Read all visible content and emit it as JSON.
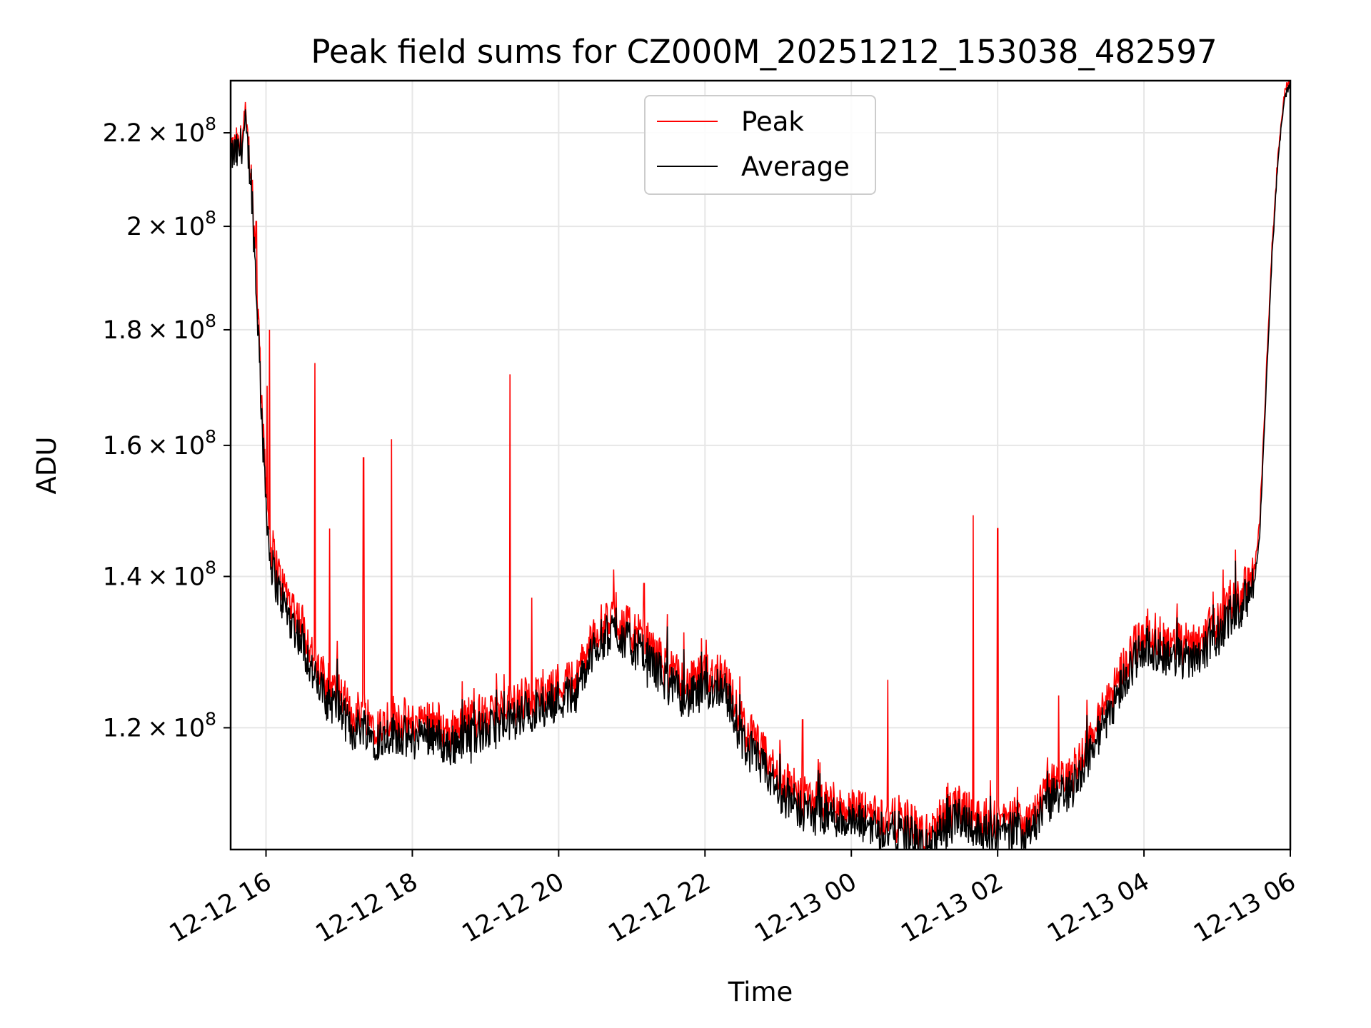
{
  "chart_data": {
    "type": "line",
    "title": "Peak field sums for CZ000M_20251212_153038_482597",
    "xlabel": "Time",
    "ylabel": "ADU",
    "y_scale": "log",
    "grid": true,
    "legend_position": "upper-center",
    "x_range": [
      "2025-12-12T15:31",
      "2025-12-13T06:00"
    ],
    "y_range": [
      106000000,
      232000000
    ],
    "x_ticks": [
      "12-12 16",
      "12-12 18",
      "12-12 20",
      "12-12 22",
      "12-13 00",
      "12-13 02",
      "12-13 04",
      "12-13 06"
    ],
    "y_ticks": [
      {
        "value": 120000000,
        "mant": "1.2",
        "exp": "8"
      },
      {
        "value": 140000000,
        "mant": "1.4",
        "exp": "8"
      },
      {
        "value": 160000000,
        "mant": "1.6",
        "exp": "8"
      },
      {
        "value": 180000000,
        "mant": "1.8",
        "exp": "8"
      },
      {
        "value": 200000000,
        "mant": "2",
        "exp": "8"
      },
      {
        "value": 220000000,
        "mant": "2.2",
        "exp": "8"
      }
    ],
    "series": [
      {
        "name": "Peak",
        "color": "#ff0000",
        "x": [
          "2025-12-12T15:30",
          "2025-12-12T15:38",
          "2025-12-12T15:43",
          "2025-12-12T15:48",
          "2025-12-12T15:53",
          "2025-12-12T15:58",
          "2025-12-12T16:03",
          "2025-12-12T16:10",
          "2025-12-12T16:20",
          "2025-12-12T16:30",
          "2025-12-12T16:40",
          "2025-12-12T16:50",
          "2025-12-12T17:00",
          "2025-12-12T17:10",
          "2025-12-12T17:20",
          "2025-12-12T17:30",
          "2025-12-12T17:45",
          "2025-12-12T18:00",
          "2025-12-12T18:15",
          "2025-12-12T18:30",
          "2025-12-12T18:45",
          "2025-12-12T19:00",
          "2025-12-12T19:15",
          "2025-12-12T19:30",
          "2025-12-12T19:45",
          "2025-12-12T20:00",
          "2025-12-12T20:15",
          "2025-12-12T20:30",
          "2025-12-12T20:45",
          "2025-12-12T21:00",
          "2025-12-12T21:15",
          "2025-12-12T21:30",
          "2025-12-12T21:45",
          "2025-12-12T22:00",
          "2025-12-12T22:15",
          "2025-12-12T22:30",
          "2025-12-12T22:45",
          "2025-12-12T23:00",
          "2025-12-12T23:15",
          "2025-12-12T23:30",
          "2025-12-12T23:45",
          "2025-12-13T00:00",
          "2025-12-13T00:15",
          "2025-12-13T00:30",
          "2025-12-13T00:45",
          "2025-12-13T01:00",
          "2025-12-13T01:15",
          "2025-12-13T01:30",
          "2025-12-13T01:45",
          "2025-12-13T02:00",
          "2025-12-13T02:15",
          "2025-12-13T02:30",
          "2025-12-13T02:45",
          "2025-12-13T03:00",
          "2025-12-13T03:15",
          "2025-12-13T03:30",
          "2025-12-13T03:45",
          "2025-12-13T04:00",
          "2025-12-13T04:15",
          "2025-12-13T04:30",
          "2025-12-13T04:45",
          "2025-12-13T05:00",
          "2025-12-13T05:10",
          "2025-12-13T05:20",
          "2025-12-13T05:30",
          "2025-12-13T05:35",
          "2025-12-13T05:40",
          "2025-12-13T05:45",
          "2025-12-13T05:50",
          "2025-12-13T05:55",
          "2025-12-13T06:00"
        ],
        "values": [
          215000000,
          216000000,
          222000000,
          210000000,
          185000000,
          160000000,
          145000000,
          140000000,
          136000000,
          133000000,
          128000000,
          125000000,
          124000000,
          121000000,
          122000000,
          120000000,
          121000000,
          120000000,
          121000000,
          119000000,
          121000000,
          121000000,
          122000000,
          123000000,
          124000000,
          125000000,
          126000000,
          132000000,
          134000000,
          132000000,
          130000000,
          127000000,
          125000000,
          126000000,
          127000000,
          120000000,
          117000000,
          114000000,
          112000000,
          111000000,
          111000000,
          110000000,
          110000000,
          109000000,
          109000000,
          107000000,
          109000000,
          111000000,
          109000000,
          109000000,
          109000000,
          110000000,
          113000000,
          114000000,
          118000000,
          123000000,
          128000000,
          132000000,
          131000000,
          130000000,
          131000000,
          133000000,
          136000000,
          137000000,
          140000000,
          148000000,
          170000000,
          195000000,
          215000000,
          228000000,
          232000000
        ]
      },
      {
        "name": "Average",
        "color": "#000000",
        "x": [
          "2025-12-12T15:30",
          "2025-12-12T15:38",
          "2025-12-12T15:43",
          "2025-12-12T15:48",
          "2025-12-12T15:53",
          "2025-12-12T15:58",
          "2025-12-12T16:03",
          "2025-12-12T16:10",
          "2025-12-12T16:20",
          "2025-12-12T16:30",
          "2025-12-12T16:40",
          "2025-12-12T16:50",
          "2025-12-12T17:00",
          "2025-12-12T17:10",
          "2025-12-12T17:20",
          "2025-12-12T17:30",
          "2025-12-12T17:45",
          "2025-12-12T18:00",
          "2025-12-12T18:15",
          "2025-12-12T18:30",
          "2025-12-12T18:45",
          "2025-12-12T19:00",
          "2025-12-12T19:15",
          "2025-12-12T19:30",
          "2025-12-12T19:45",
          "2025-12-12T20:00",
          "2025-12-12T20:15",
          "2025-12-12T20:30",
          "2025-12-12T20:45",
          "2025-12-12T21:00",
          "2025-12-12T21:15",
          "2025-12-12T21:30",
          "2025-12-12T21:45",
          "2025-12-12T22:00",
          "2025-12-12T22:15",
          "2025-12-12T22:30",
          "2025-12-12T22:45",
          "2025-12-12T23:00",
          "2025-12-12T23:15",
          "2025-12-12T23:30",
          "2025-12-12T23:45",
          "2025-12-13T00:00",
          "2025-12-13T00:15",
          "2025-12-13T00:30",
          "2025-12-13T00:45",
          "2025-12-13T01:00",
          "2025-12-13T01:15",
          "2025-12-13T01:30",
          "2025-12-13T01:45",
          "2025-12-13T02:00",
          "2025-12-13T02:15",
          "2025-12-13T02:30",
          "2025-12-13T02:45",
          "2025-12-13T03:00",
          "2025-12-13T03:15",
          "2025-12-13T03:30",
          "2025-12-13T03:45",
          "2025-12-13T04:00",
          "2025-12-13T04:15",
          "2025-12-13T04:30",
          "2025-12-13T04:45",
          "2025-12-13T05:00",
          "2025-12-13T05:10",
          "2025-12-13T05:20",
          "2025-12-13T05:30",
          "2025-12-13T05:35",
          "2025-12-13T05:40",
          "2025-12-13T05:45",
          "2025-12-13T05:50",
          "2025-12-13T05:55",
          "2025-12-13T06:00"
        ],
        "values": [
          214500000,
          215500000,
          221000000,
          209000000,
          183000000,
          158000000,
          143000000,
          138000000,
          134000000,
          131000000,
          126000000,
          123500000,
          122500000,
          119500000,
          120500000,
          118500000,
          119500000,
          118500000,
          119500000,
          117500000,
          119500000,
          119500000,
          120500000,
          121500000,
          122500000,
          123500000,
          124500000,
          130500000,
          132500000,
          130500000,
          128500000,
          125500000,
          123500000,
          124500000,
          125500000,
          118500000,
          115500000,
          112700000,
          110700000,
          109800000,
          109800000,
          108800000,
          108800000,
          107900000,
          107900000,
          106000000,
          107900000,
          109800000,
          107900000,
          107900000,
          107900000,
          108800000,
          111700000,
          112700000,
          116700000,
          121500000,
          126500000,
          130500000,
          129500000,
          128500000,
          129500000,
          131500000,
          134500000,
          135500000,
          138500000,
          146500000,
          168500000,
          194000000,
          214500000,
          227500000,
          231500000
        ]
      }
    ],
    "peak_spikes": [
      {
        "x": "2025-12-12T15:42",
        "y": 225000000
      },
      {
        "x": "2025-12-12T15:48",
        "y": 213000000
      },
      {
        "x": "2025-12-12T15:52",
        "y": 201000000
      },
      {
        "x": "2025-12-12T16:01",
        "y": 170000000
      },
      {
        "x": "2025-12-12T16:03",
        "y": 180000000
      },
      {
        "x": "2025-12-12T16:40",
        "y": 174000000
      },
      {
        "x": "2025-12-12T16:52",
        "y": 147000000
      },
      {
        "x": "2025-12-12T17:20",
        "y": 158000000
      },
      {
        "x": "2025-12-12T17:43",
        "y": 161000000
      },
      {
        "x": "2025-12-12T19:20",
        "y": 172000000
      },
      {
        "x": "2025-12-12T19:38",
        "y": 137000000
      },
      {
        "x": "2025-12-12T20:45",
        "y": 141000000
      },
      {
        "x": "2025-12-12T21:10",
        "y": 139000000
      },
      {
        "x": "2025-12-12T23:20",
        "y": 121000000
      },
      {
        "x": "2025-12-13T00:30",
        "y": 126000000
      },
      {
        "x": "2025-12-13T01:40",
        "y": 149000000
      },
      {
        "x": "2025-12-13T02:00",
        "y": 147000000
      },
      {
        "x": "2025-12-13T02:50",
        "y": 124000000
      },
      {
        "x": "2025-12-13T05:05",
        "y": 141000000
      }
    ]
  }
}
